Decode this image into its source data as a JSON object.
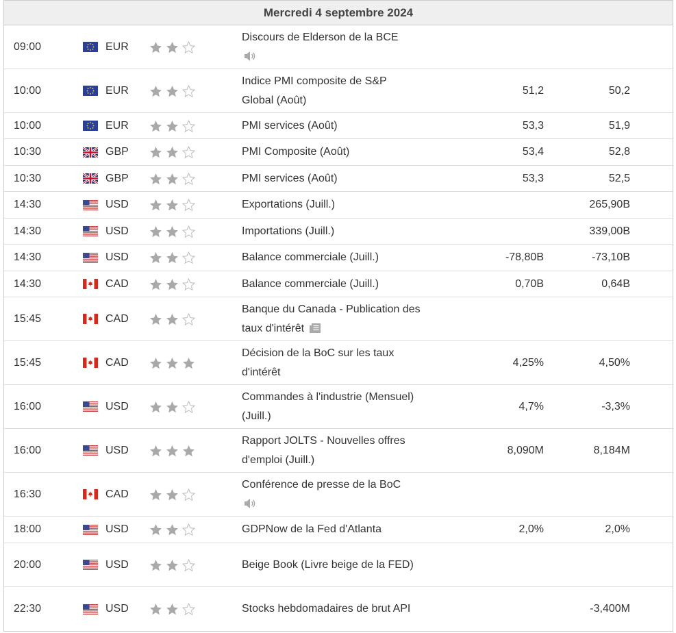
{
  "header": {
    "title": "Mercredi 4 septembre 2024"
  },
  "rows": [
    {
      "time": "09:00",
      "currency": "EUR",
      "importance": 2,
      "event": "Discours de Elderson de la BCE"
    },
    {
      "time": "10:00",
      "currency": "EUR",
      "importance": 2,
      "event": "Indice PMI composite de S&P Global (Août)",
      "forecast": "51,2",
      "previous": "50,2"
    },
    {
      "time": "10:00",
      "currency": "EUR",
      "importance": 2,
      "event": "PMI services (Août)",
      "forecast": "53,3",
      "previous": "51,9"
    },
    {
      "time": "10:30",
      "currency": "GBP",
      "importance": 2,
      "event": "PMI Composite (Août)",
      "forecast": "53,4",
      "previous": "52,8"
    },
    {
      "time": "10:30",
      "currency": "GBP",
      "importance": 2,
      "event": "PMI services (Août)",
      "forecast": "53,3",
      "previous": "52,5"
    },
    {
      "time": "14:30",
      "currency": "USD",
      "importance": 2,
      "event": "Exportations (Juill.)",
      "previous": "265,90B"
    },
    {
      "time": "14:30",
      "currency": "USD",
      "importance": 2,
      "event": "Importations (Juill.)",
      "previous": "339,00B"
    },
    {
      "time": "14:30",
      "currency": "USD",
      "importance": 2,
      "event": "Balance commerciale (Juill.)",
      "forecast": "-78,80B",
      "previous": "-73,10B"
    },
    {
      "time": "14:30",
      "currency": "CAD",
      "importance": 2,
      "event": "Balance commerciale (Juill.)",
      "forecast": "0,70B",
      "previous": "0,64B"
    },
    {
      "time": "15:45",
      "currency": "CAD",
      "importance": 2,
      "event": "Banque du Canada - Publication des taux d'intérêt"
    },
    {
      "time": "15:45",
      "currency": "CAD",
      "importance": 3,
      "event": "Décision de la BoC sur les taux d'intérêt",
      "forecast": "4,25%",
      "previous": "4,50%"
    },
    {
      "time": "16:00",
      "currency": "USD",
      "importance": 2,
      "event": "Commandes à l'industrie (Mensuel) (Juill.)",
      "forecast": "4,7%",
      "previous": "-3,3%"
    },
    {
      "time": "16:00",
      "currency": "USD",
      "importance": 3,
      "event": "Rapport JOLTS - Nouvelles offres d'emploi (Juill.)",
      "forecast": "8,090M",
      "previous": "8,184M"
    },
    {
      "time": "16:30",
      "currency": "CAD",
      "importance": 2,
      "event": "Conférence de presse de la BoC"
    },
    {
      "time": "18:00",
      "currency": "USD",
      "importance": 2,
      "event": "GDPNow de la Fed d'Atlanta",
      "forecast": "2,0%",
      "previous": "2,0%"
    },
    {
      "time": "20:00",
      "currency": "USD",
      "importance": 2,
      "event": "Beige Book (Livre beige de la FED)"
    },
    {
      "time": "22:30",
      "currency": "USD",
      "importance": 2,
      "event": "Stocks hebdomadaires de brut API",
      "previous": "-3,400M"
    }
  ]
}
